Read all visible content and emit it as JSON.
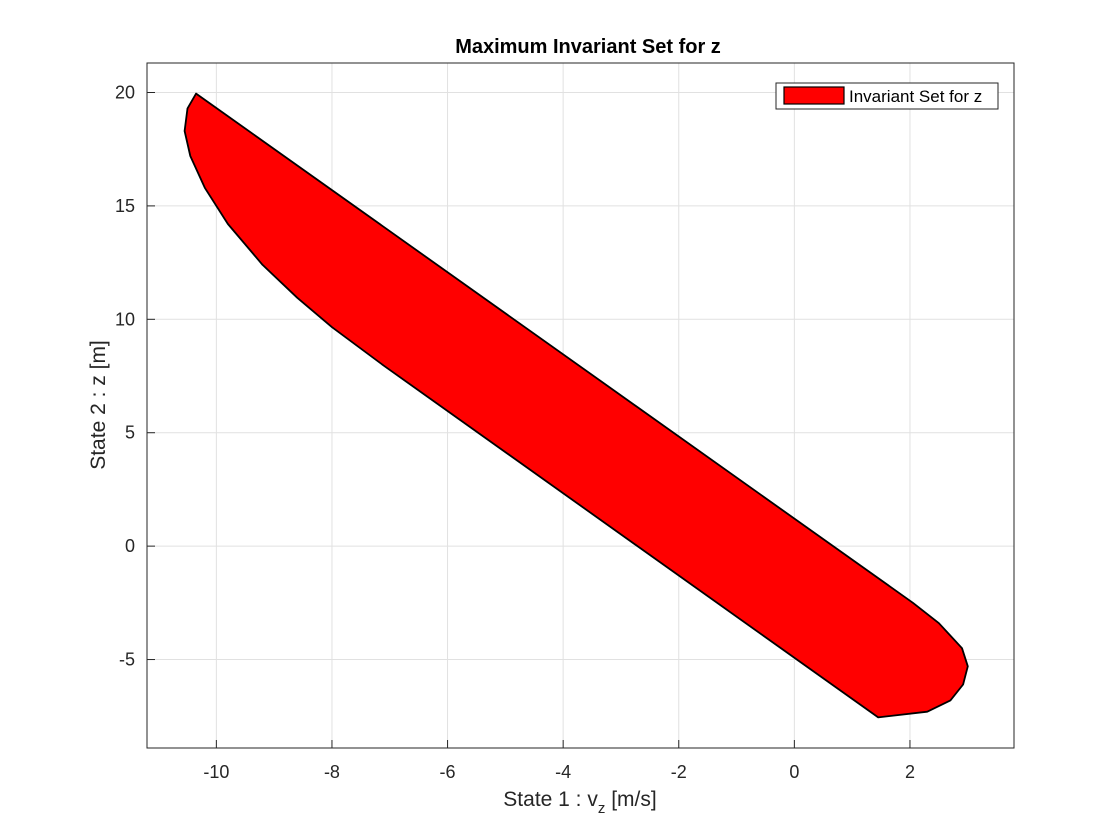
{
  "chart_data": {
    "type": "area",
    "title": "Maximum Invariant Set for z",
    "xlabel_main": "State 1 : v",
    "xlabel_sub": "z",
    "xlabel_unit": " [m/s]",
    "ylabel": "State 2 : z [m]",
    "xlim": [
      -11.2,
      3.8
    ],
    "ylim": [
      -8.9,
      21.3
    ],
    "xticks": [
      -10,
      -8,
      -6,
      -4,
      -2,
      0,
      2
    ],
    "yticks": [
      -5,
      0,
      5,
      10,
      15,
      20
    ],
    "xtick_labels": [
      "-10",
      "-8",
      "-6",
      "-4",
      "-2",
      "0",
      "2"
    ],
    "ytick_labels": [
      "-5",
      "0",
      "5",
      "10",
      "15",
      "20"
    ],
    "grid": true,
    "legend": {
      "position": "top-right"
    },
    "series": [
      {
        "name": "Invariant Set for z",
        "fill": "#ff0000",
        "edge": "#000000",
        "polygon": [
          [
            -10.35,
            19.95
          ],
          [
            2.05,
            -2.5
          ],
          [
            2.5,
            -3.4
          ],
          [
            2.9,
            -4.5
          ],
          [
            3.0,
            -5.3
          ],
          [
            2.92,
            -6.1
          ],
          [
            2.7,
            -6.8
          ],
          [
            2.3,
            -7.3
          ],
          [
            1.45,
            -7.55
          ],
          [
            -7.1,
            7.95
          ],
          [
            -8.0,
            9.65
          ],
          [
            -8.6,
            10.95
          ],
          [
            -9.2,
            12.4
          ],
          [
            -9.8,
            14.2
          ],
          [
            -10.2,
            15.8
          ],
          [
            -10.45,
            17.2
          ],
          [
            -10.55,
            18.3
          ],
          [
            -10.5,
            19.3
          ]
        ]
      }
    ]
  }
}
